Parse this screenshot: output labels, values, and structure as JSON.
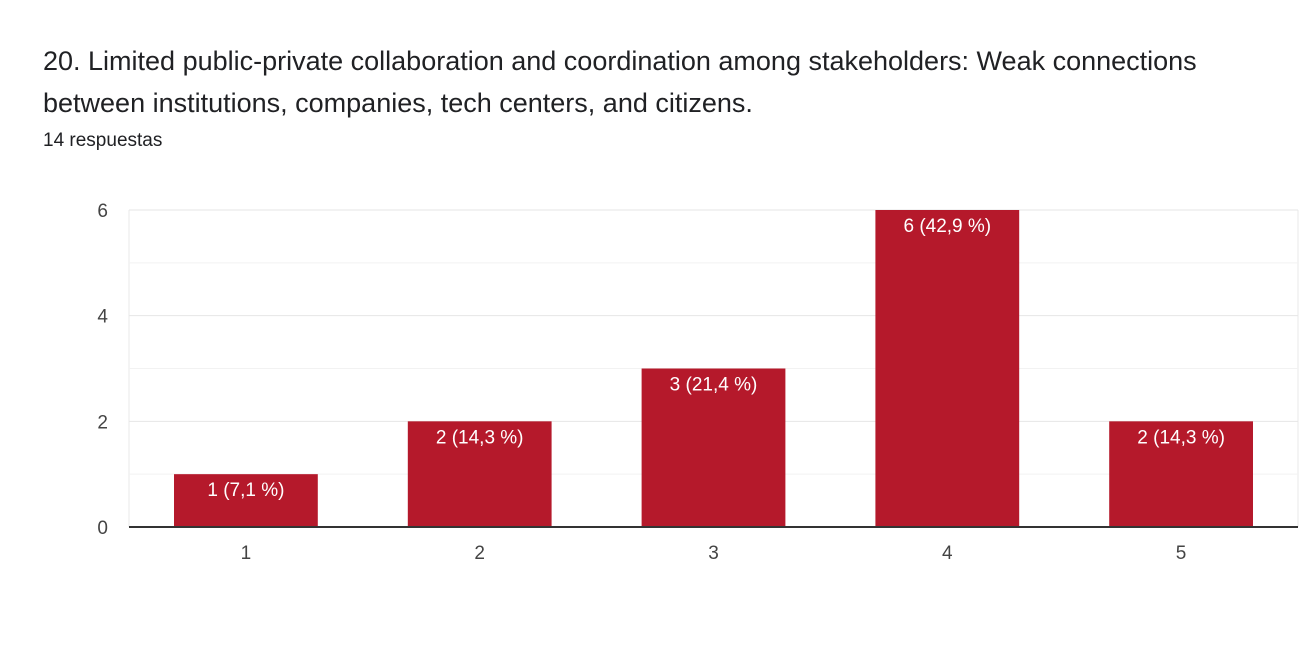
{
  "question": {
    "title": "20.  Limited public-private collaboration and coordination among stakeholders: Weak connections between institutions, companies, tech centers, and citizens.",
    "responses": "14 respuestas"
  },
  "colors": {
    "bar": "#b5192b",
    "grid": "#e8e8e8",
    "axis": "#333333"
  },
  "chart_data": {
    "type": "bar",
    "categories": [
      "1",
      "2",
      "3",
      "4",
      "5"
    ],
    "values": [
      1,
      2,
      3,
      6,
      2
    ],
    "data_labels": [
      "1 (7,1 %)",
      "2 (14,3 %)",
      "3 (21,4 %)",
      "6 (42,9 %)",
      "2 (14,3 %)"
    ],
    "yticks": [
      "0",
      "2",
      "4",
      "6"
    ],
    "ylim": [
      0,
      6
    ],
    "grid": true,
    "legend": "none"
  }
}
